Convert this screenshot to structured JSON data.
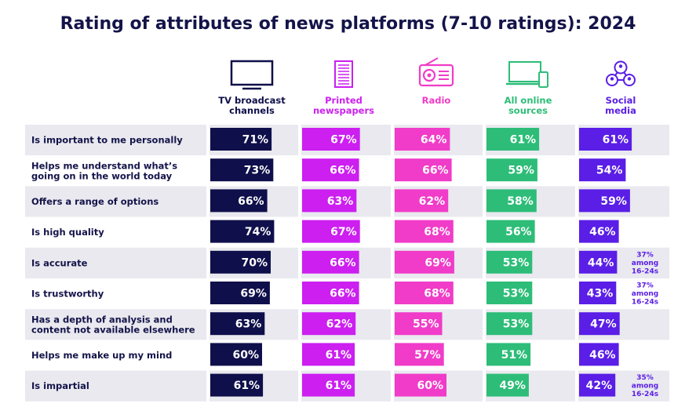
{
  "chart_data": {
    "type": "bar",
    "title": "Rating of attributes of news platforms (7-10 ratings): 2024",
    "value_suffix": "%",
    "xlim": [
      0,
      100
    ],
    "categories": [
      [
        "Is important to me personally"
      ],
      [
        "Helps me understand what’s",
        "going on in the world today"
      ],
      [
        "Offers a range of options"
      ],
      [
        "Is high quality"
      ],
      [
        "Is accurate"
      ],
      [
        "Is trustworthy"
      ],
      [
        "Has a depth of analysis and",
        "content not available elsewhere"
      ],
      [
        "Helps me make up my mind"
      ],
      [
        "Is impartial"
      ]
    ],
    "series": [
      {
        "name": [
          "TV broadcast",
          "channels"
        ],
        "icon": "tv-icon",
        "color": "#0f0f4b",
        "values": [
          71,
          73,
          66,
          74,
          70,
          69,
          63,
          60,
          61
        ]
      },
      {
        "name": [
          "Printed",
          "newspapers"
        ],
        "icon": "newspaper-icon",
        "color": "#cc1ff0",
        "values": [
          67,
          66,
          63,
          67,
          66,
          66,
          62,
          61,
          61
        ]
      },
      {
        "name": [
          "Radio"
        ],
        "icon": "radio-icon",
        "color": "#f03cc8",
        "values": [
          64,
          66,
          62,
          68,
          69,
          68,
          55,
          57,
          60
        ]
      },
      {
        "name": [
          "All online",
          "sources"
        ],
        "icon": "laptop-phone-icon",
        "color": "#2dbd78",
        "values": [
          61,
          59,
          58,
          56,
          53,
          53,
          53,
          51,
          49
        ]
      },
      {
        "name": [
          "Social",
          "media"
        ],
        "icon": "social-network-icon",
        "color": "#5a1ee6",
        "values": [
          61,
          54,
          59,
          46,
          44,
          43,
          47,
          46,
          42
        ]
      }
    ],
    "annotations": [
      {
        "series": 4,
        "row": 4,
        "lines": [
          "37%",
          "among",
          "16-24s"
        ]
      },
      {
        "series": 4,
        "row": 5,
        "lines": [
          "37%",
          "among",
          "16-24s"
        ]
      },
      {
        "series": 4,
        "row": 8,
        "lines": [
          "35%",
          "among",
          "16-24s"
        ]
      }
    ],
    "row_shading": "alternating",
    "legend": "column headers"
  }
}
